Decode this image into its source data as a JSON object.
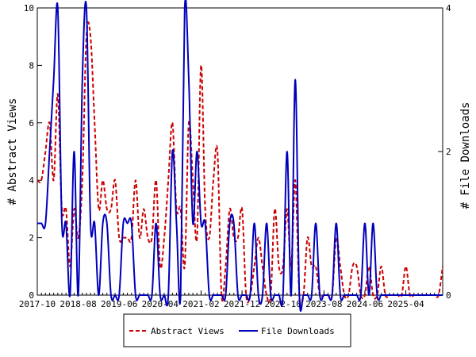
{
  "chart_data": {
    "type": "line",
    "title": "",
    "xlabel": "",
    "ylabel_left": "# Abstract Views",
    "ylabel_right": "# File Downloads",
    "x_tick_labels": [
      "2017-10",
      "2018-08",
      "2019-06",
      "2020-04",
      "2021-02",
      "2021-12",
      "2022-10",
      "2023-08",
      "2024-06",
      "2025-04"
    ],
    "x_start": "2017-10",
    "y_left": {
      "min": 0,
      "max": 10,
      "ticks": [
        "0",
        "2",
        "4",
        "6",
        "8",
        "10"
      ]
    },
    "y_right": {
      "min": 0,
      "max": 4,
      "ticks": [
        "0",
        "2",
        "4"
      ]
    },
    "legend": {
      "placement": "bottom-center"
    },
    "series": [
      {
        "name": "Abstract Views",
        "color": "#cc0000",
        "style": "dashed",
        "axis": "left",
        "values": [
          4,
          4,
          5,
          6,
          4,
          7,
          3,
          3,
          1,
          3,
          2,
          4,
          9,
          9,
          6,
          3,
          4,
          3,
          3,
          4,
          2,
          2,
          2,
          2,
          4,
          2,
          3,
          2,
          2,
          4,
          1,
          2,
          4,
          6,
          3,
          3,
          1,
          6,
          4,
          2,
          8,
          3,
          2,
          4,
          5,
          0,
          1,
          3,
          2,
          2,
          3,
          0,
          0,
          1,
          2,
          1,
          0,
          0,
          3,
          1,
          1,
          3,
          1,
          4,
          0,
          0,
          2,
          1,
          1,
          0,
          0,
          0,
          0,
          2,
          1,
          0,
          0,
          1,
          1,
          0,
          0,
          1,
          0,
          0,
          1,
          0,
          0,
          0,
          0,
          0,
          1,
          0,
          0,
          0,
          0,
          0,
          0,
          0,
          0,
          1
        ]
      },
      {
        "name": "File Downloads",
        "color": "#0000bb",
        "style": "solid",
        "axis": "right",
        "values": [
          1,
          1,
          1,
          2,
          3,
          4,
          1,
          1,
          0,
          2,
          0,
          3,
          4,
          1,
          1,
          0,
          1,
          1,
          0,
          0,
          0,
          1,
          1,
          1,
          0,
          0,
          0,
          0,
          0,
          1,
          0,
          0,
          0,
          2,
          1,
          0,
          4,
          3,
          1,
          2,
          1,
          1,
          0,
          0,
          0,
          0,
          0,
          1,
          1,
          0,
          0,
          0,
          0,
          1,
          0,
          0,
          1,
          0,
          0,
          0,
          0,
          2,
          0,
          3,
          0,
          0,
          0,
          0,
          1,
          0,
          0,
          0,
          0,
          1,
          0,
          0,
          0,
          0,
          0,
          0,
          1,
          0,
          1,
          0,
          0,
          0,
          0,
          0,
          0,
          0,
          0,
          0,
          0,
          0,
          0,
          0,
          0,
          0,
          0,
          0
        ]
      }
    ]
  }
}
